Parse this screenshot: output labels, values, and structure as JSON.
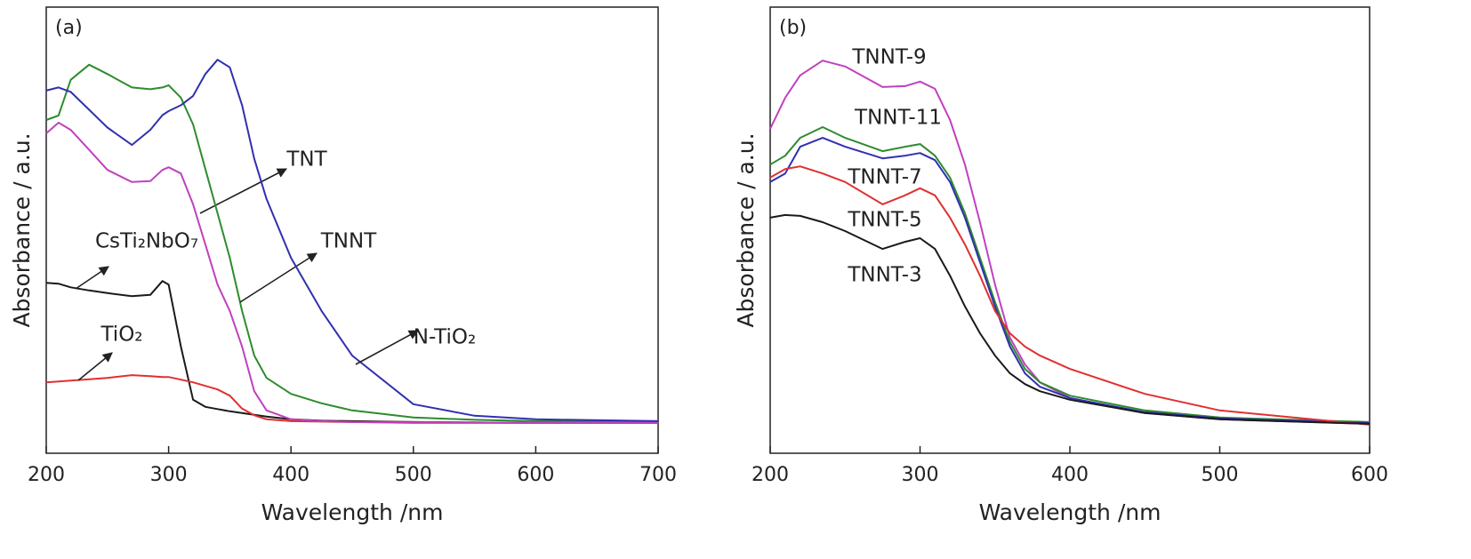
{
  "chart_data": [
    {
      "type": "line",
      "panel_label": "(a)",
      "x_label": "Wavelength /nm",
      "y_label": "Absorbance / a.u.",
      "x": [
        200,
        210,
        220,
        235,
        250,
        270,
        285,
        295,
        300,
        310,
        320,
        330,
        340,
        350,
        360,
        370,
        380,
        400,
        425,
        450,
        500,
        550,
        600,
        700
      ],
      "xlim": [
        200,
        700
      ],
      "xticks": [
        200,
        300,
        400,
        500,
        600,
        700
      ],
      "ylim": [
        0,
        100
      ],
      "series": [
        {
          "name": "CsTi₂NbO₇",
          "color": "#1a1a1a",
          "values": [
            38.2,
            38.0,
            37.2,
            36.5,
            35.9,
            35.2,
            35.5,
            38.6,
            37.8,
            23.9,
            12.0,
            10.4,
            9.9,
            9.4,
            9.0,
            8.6,
            8.2,
            7.6,
            7.3,
            7.2,
            7.0,
            6.9,
            6.8,
            6.8
          ]
        },
        {
          "name": "TiO₂",
          "color": "#e03030",
          "values": [
            15.9,
            16.1,
            16.3,
            16.6,
            16.9,
            17.5,
            17.3,
            17.1,
            17.1,
            16.5,
            15.9,
            15.1,
            14.3,
            12.9,
            10.0,
            8.5,
            7.6,
            7.2,
            7.1,
            7.0,
            7.0,
            6.9,
            6.8,
            6.8
          ]
        },
        {
          "name": "TNT",
          "color": "#c040c0",
          "values": [
            71.7,
            74.1,
            72.5,
            68.0,
            63.5,
            60.8,
            61.0,
            63.5,
            64.1,
            62.7,
            55.8,
            46.8,
            37.8,
            31.9,
            23.9,
            13.9,
            9.6,
            7.6,
            7.2,
            7.0,
            6.8,
            6.8,
            6.8,
            6.8
          ]
        },
        {
          "name": "TNNT",
          "color": "#2e8b2e",
          "values": [
            74.7,
            75.7,
            83.7,
            87.1,
            85.0,
            82.0,
            81.6,
            82.0,
            82.5,
            79.7,
            73.7,
            63.7,
            53.8,
            43.8,
            31.9,
            21.9,
            16.9,
            13.3,
            11.2,
            9.6,
            8.0,
            7.5,
            7.2,
            7.2
          ]
        },
        {
          "name": "N-TiO₂",
          "color": "#3030b0",
          "values": [
            81.3,
            82.0,
            81.0,
            77.0,
            73.0,
            69.1,
            72.5,
            75.8,
            76.7,
            78.0,
            80.1,
            85.0,
            88.2,
            86.5,
            78.0,
            66.0,
            57.0,
            43.8,
            31.9,
            21.9,
            11.0,
            8.4,
            7.6,
            7.2
          ]
        }
      ]
    },
    {
      "type": "line",
      "panel_label": "(b)",
      "x_label": "Wavelength /nm",
      "y_label": "Absorbance / a.u.",
      "x": [
        200,
        210,
        220,
        235,
        250,
        275,
        290,
        300,
        310,
        320,
        330,
        340,
        350,
        360,
        370,
        380,
        400,
        450,
        500,
        600
      ],
      "xlim": [
        200,
        600
      ],
      "xticks": [
        200,
        300,
        400,
        500,
        600
      ],
      "ylim": [
        0,
        100
      ],
      "series": [
        {
          "name": "TNNT-9",
          "color": "#c040c0",
          "values": [
            72.7,
            79.7,
            84.7,
            88.0,
            86.7,
            82.1,
            82.3,
            83.3,
            81.7,
            74.7,
            64.7,
            51.8,
            37.8,
            25.9,
            19.9,
            15.9,
            12.4,
            9.0,
            7.6,
            6.6
          ]
        },
        {
          "name": "TNNT-11",
          "color": "#2e8b2e",
          "values": [
            64.7,
            66.7,
            70.7,
            73.1,
            70.7,
            67.7,
            68.7,
            69.3,
            66.7,
            61.8,
            53.8,
            43.8,
            33.9,
            24.9,
            18.9,
            15.9,
            12.9,
            9.6,
            8.0,
            7.0
          ]
        },
        {
          "name": "TNNT-7",
          "color": "#3030b0",
          "values": [
            60.8,
            62.7,
            68.7,
            70.7,
            68.7,
            66.1,
            66.7,
            67.3,
            65.7,
            60.8,
            52.8,
            42.8,
            32.9,
            23.9,
            17.9,
            14.9,
            12.4,
            9.2,
            7.8,
            6.8
          ]
        },
        {
          "name": "TNNT-5",
          "color": "#e03030",
          "values": [
            61.8,
            63.7,
            64.3,
            62.7,
            60.8,
            55.8,
            57.8,
            59.4,
            57.8,
            52.8,
            46.8,
            39.8,
            31.9,
            26.9,
            23.9,
            21.9,
            18.9,
            13.3,
            9.6,
            6.4
          ]
        },
        {
          "name": "TNNT-3",
          "color": "#1a1a1a",
          "values": [
            52.8,
            53.4,
            53.2,
            51.8,
            49.8,
            45.8,
            47.4,
            48.2,
            45.8,
            39.8,
            32.9,
            26.9,
            21.9,
            17.9,
            15.5,
            13.9,
            12.0,
            9.0,
            7.6,
            6.6
          ]
        }
      ]
    }
  ]
}
